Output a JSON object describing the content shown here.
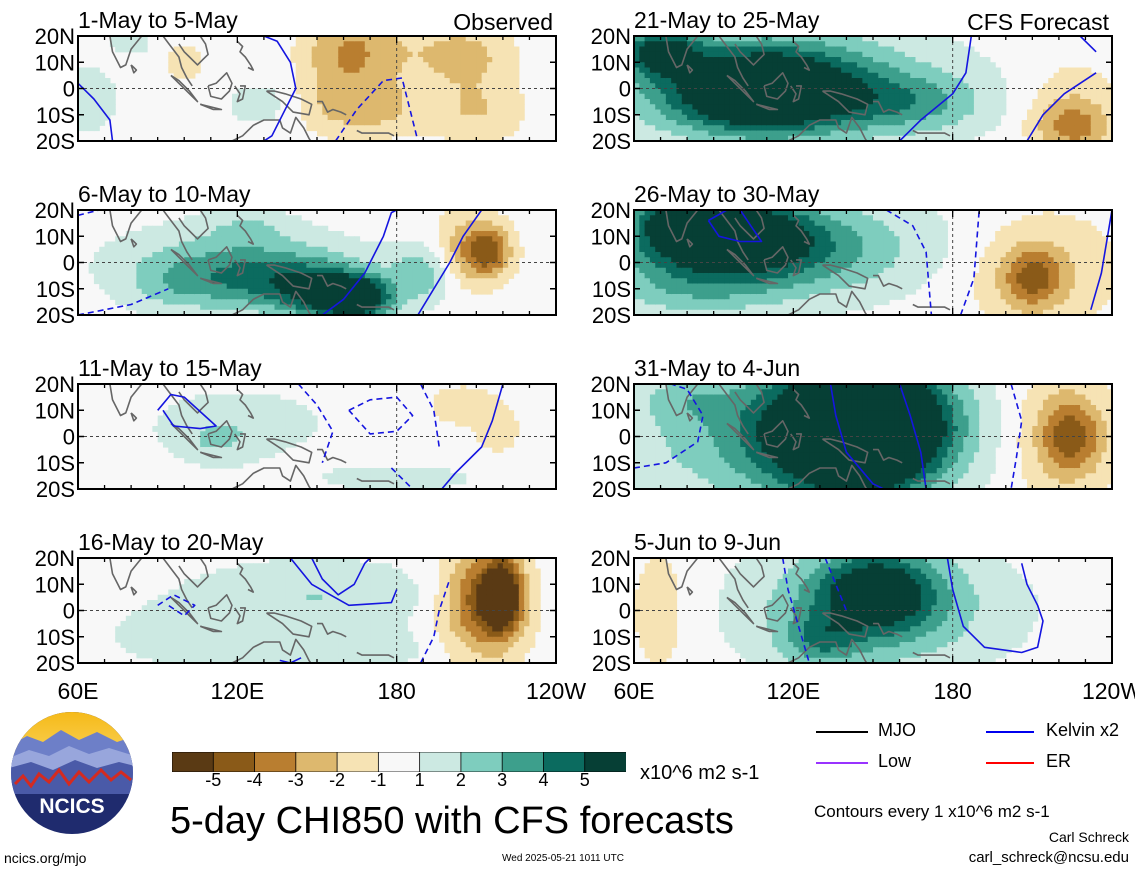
{
  "chart_data": {
    "type": "heatmap",
    "title": "5-day CHI850 with CFS forecasts",
    "x_ticks": [
      "60E",
      "120E",
      "180",
      "120W"
    ],
    "y_ticks": [
      "20N",
      "10N",
      "0",
      "10S",
      "20S"
    ],
    "panels": [
      {
        "label": "1-May to 5-May",
        "tag": "Observed",
        "blobs": [
          [
            -1.5,
            155,
            12,
            9,
            16
          ],
          [
            -2,
            170,
            14,
            11,
            14
          ],
          [
            -2,
            204,
            13,
            13,
            8
          ],
          [
            -1.5,
            170,
            -8,
            15,
            7
          ],
          [
            -1.5,
            210,
            -8,
            12,
            9
          ],
          [
            1.5,
            64,
            -4,
            7,
            8
          ],
          [
            1,
            128,
            -6,
            9,
            6
          ],
          [
            -1,
            100,
            10,
            6,
            5
          ],
          [
            1,
            80,
            18,
            6,
            4
          ]
        ],
        "contours": [
          {
            "type": "kelvin",
            "style": "solid",
            "lon": [
              130,
              135,
              140,
              142,
              137,
              133,
              130
            ],
            "lat": [
              20,
              18,
              10,
              0,
              -10,
              -18,
              -20
            ]
          },
          {
            "type": "kelvin",
            "style": "solid",
            "lon": [
              60,
              66,
              72,
              73
            ],
            "lat": [
              2,
              -4,
              -12,
              -20
            ]
          },
          {
            "type": "kelvin",
            "style": "dashed",
            "lon": [
              157,
              165,
              175,
              182,
              188
            ],
            "lat": [
              -20,
              -8,
              3,
              4,
              -20
            ]
          }
        ]
      },
      {
        "label": "6-May to 10-May",
        "blobs": [
          [
            2,
            116,
            0,
            30,
            10
          ],
          [
            3,
            138,
            -8,
            24,
            8
          ],
          [
            4,
            157,
            -13,
            12,
            6
          ],
          [
            4,
            166,
            -14,
            8,
            5
          ],
          [
            2,
            190,
            -4,
            8,
            8
          ],
          [
            1,
            95,
            -10,
            12,
            7
          ],
          [
            -2,
            205,
            5,
            8,
            10
          ],
          [
            -3.5,
            215,
            4,
            6,
            7
          ],
          [
            1,
            124,
            14,
            11,
            5
          ]
        ],
        "contours": [
          {
            "type": "kelvin",
            "style": "solid",
            "lon": [
              152,
              160,
              168,
              175,
              178,
              180
            ],
            "lat": [
              -20,
              -14,
              -4,
              10,
              19,
              20
            ]
          },
          {
            "type": "kelvin",
            "style": "solid",
            "lon": [
              188,
              194,
              200,
              205,
              212
            ],
            "lat": [
              -20,
              -10,
              0,
              10,
              20
            ]
          },
          {
            "type": "kelvin",
            "style": "dashed",
            "lon": [
              60,
              80,
              94
            ],
            "lat": [
              -20,
              -16,
              -10
            ]
          },
          {
            "type": "kelvin",
            "style": "dashed",
            "lon": [
              60,
              68
            ],
            "lat": [
              18,
              20
            ]
          }
        ]
      },
      {
        "label": "11-May to 15-May",
        "blobs": [
          [
            1,
            120,
            5,
            25,
            10
          ],
          [
            1,
            112,
            -2,
            10,
            6
          ],
          [
            1,
            180,
            -16,
            22,
            4
          ],
          [
            -1,
            205,
            12,
            10,
            6
          ],
          [
            -1,
            218,
            2,
            6,
            6
          ]
        ],
        "contours": [
          {
            "type": "kelvin",
            "style": "solid",
            "lon": [
              90,
              95,
              100,
              112,
              106,
              96,
              92
            ],
            "lat": [
              10,
              16,
              15,
              4,
              3,
              4,
              10
            ]
          },
          {
            "type": "kelvin",
            "style": "solid",
            "lon": [
              197,
              202,
              212,
              216,
              220
            ],
            "lat": [
              -20,
              -14,
              -4,
              6,
              20
            ]
          },
          {
            "type": "kelvin",
            "style": "dashed",
            "lon": [
              143,
              150,
              156,
              152
            ],
            "lat": [
              20,
              12,
              2,
              -10
            ]
          },
          {
            "type": "kelvin",
            "style": "dashed",
            "lon": [
              162,
              170,
              180,
              186,
              180,
              170,
              162
            ],
            "lat": [
              10,
              14,
              15,
              8,
              2,
              1,
              10
            ]
          },
          {
            "type": "kelvin",
            "style": "dashed",
            "lon": [
              178,
              183,
              186
            ],
            "lat": [
              -12,
              -17,
              -20
            ]
          },
          {
            "type": "kelvin",
            "style": "dashed",
            "lon": [
              189,
              194,
              196
            ],
            "lat": [
              20,
              10,
              -4
            ]
          }
        ]
      },
      {
        "label": "16-May to 20-May",
        "blobs": [
          [
            1.5,
            150,
            5,
            35,
            10
          ],
          [
            1,
            100,
            -10,
            20,
            8
          ],
          [
            1,
            160,
            -15,
            30,
            5
          ],
          [
            -1.5,
            210,
            0,
            12,
            20
          ],
          [
            -3,
            214,
            4,
            10,
            12
          ],
          [
            -4.5,
            220,
            6,
            5,
            10
          ]
        ],
        "contours": [
          {
            "type": "kelvin",
            "style": "solid",
            "lon": [
              140,
              148,
              162,
              178,
              180
            ],
            "lat": [
              20,
              10,
              2,
              3,
              8
            ]
          },
          {
            "type": "kelvin",
            "style": "solid",
            "lon": [
              148,
              152,
              158,
              164,
              168,
              170
            ],
            "lat": [
              20,
              12,
              6,
              10,
              18,
              20
            ]
          },
          {
            "type": "kelvin",
            "style": "dashed",
            "lon": [
              90,
              96,
              104,
              100,
              94
            ],
            "lat": [
              2,
              6,
              2,
              -2,
              2
            ]
          },
          {
            "type": "kelvin",
            "style": "dashed",
            "lon": [
              189,
              194,
              196,
              200
            ],
            "lat": [
              -20,
              -10,
              0,
              12
            ]
          },
          {
            "type": "kelvin",
            "style": "solid",
            "lon": [
              144,
              140,
              136
            ],
            "lat": [
              -18,
              -20,
              -19
            ]
          }
        ]
      },
      {
        "label": "21-May to 25-May",
        "tag": "CFS Forecast",
        "blobs": [
          [
            2,
            115,
            3,
            45,
            16
          ],
          [
            3,
            110,
            0,
            30,
            12
          ],
          [
            4,
            108,
            -2,
            22,
            10
          ],
          [
            4.5,
            70,
            14,
            10,
            6
          ],
          [
            2,
            165,
            -6,
            20,
            8
          ],
          [
            -1.5,
            225,
            -8,
            12,
            12
          ],
          [
            -2,
            225,
            -15,
            10,
            6
          ]
        ],
        "contours": [
          {
            "type": "kelvin",
            "style": "solid",
            "lon": [
              160,
              168,
              180,
              185,
              187
            ],
            "lat": [
              -20,
              -12,
              -2,
              6,
              20
            ]
          },
          {
            "type": "kelvin",
            "style": "solid",
            "lon": [
              208,
              214,
              222,
              234
            ],
            "lat": [
              -20,
              -10,
              -2,
              6
            ]
          },
          {
            "type": "kelvin",
            "style": "solid",
            "lon": [
              228,
              234
            ],
            "lat": [
              20,
              14
            ]
          }
        ]
      },
      {
        "label": "26-May to 30-May",
        "blobs": [
          [
            2,
            110,
            6,
            50,
            14
          ],
          [
            3,
            100,
            5,
            30,
            12
          ],
          [
            4,
            95,
            12,
            18,
            8
          ],
          [
            4.5,
            80,
            16,
            10,
            6
          ],
          [
            1,
            80,
            -12,
            20,
            8
          ],
          [
            -1.5,
            212,
            -2,
            22,
            16
          ],
          [
            -3,
            210,
            -6,
            8,
            8
          ]
        ],
        "contours": [
          {
            "type": "kelvin",
            "style": "solid",
            "lon": [
              88,
              95,
              100,
              104,
              108,
              100,
              92,
              88
            ],
            "lat": [
              16,
              20,
              20,
              14,
              8,
              8,
              10,
              16
            ]
          },
          {
            "type": "kelvin",
            "style": "solid",
            "lon": [
              232,
              236,
              240
            ],
            "lat": [
              -18,
              -4,
              20
            ]
          },
          {
            "type": "kelvin",
            "style": "dashed",
            "lon": [
              155,
              165,
              170,
              172
            ],
            "lat": [
              20,
              14,
              4,
              -20
            ]
          },
          {
            "type": "kelvin",
            "style": "dashed",
            "lon": [
              183,
              188,
              190
            ],
            "lat": [
              -20,
              -6,
              20
            ]
          }
        ]
      },
      {
        "label": "31-May to 4-Jun",
        "blobs": [
          [
            1.5,
            105,
            0,
            45,
            20
          ],
          [
            3,
            135,
            2,
            30,
            18
          ],
          [
            4,
            145,
            0,
            20,
            18
          ],
          [
            5,
            150,
            6,
            20,
            14
          ],
          [
            1,
            80,
            14,
            12,
            6
          ],
          [
            -1.5,
            220,
            0,
            14,
            18
          ],
          [
            -3,
            225,
            0,
            8,
            10
          ]
        ],
        "contours": [
          {
            "type": "kelvin",
            "style": "solid",
            "lon": [
              134,
              136,
              140,
              150,
              154
            ],
            "lat": [
              20,
              8,
              -6,
              -18,
              -20
            ]
          },
          {
            "type": "kelvin",
            "style": "solid",
            "lon": [
              160,
              164,
              168,
              170
            ],
            "lat": [
              20,
              8,
              -6,
              -20
            ]
          },
          {
            "type": "kelvin",
            "style": "dashed",
            "lon": [
              60,
              72,
              84,
              86,
              80,
              74,
              68
            ],
            "lat": [
              -12,
              -10,
              -2,
              8,
              18,
              20,
              20
            ]
          },
          {
            "type": "kelvin",
            "style": "dashed",
            "lon": [
              202,
              206,
              204,
              202
            ],
            "lat": [
              20,
              6,
              -8,
              -20
            ]
          }
        ]
      },
      {
        "label": "5-Jun to 9-Jun",
        "blobs": [
          [
            1.5,
            150,
            0,
            40,
            18
          ],
          [
            2.5,
            150,
            4,
            22,
            14
          ],
          [
            3,
            152,
            8,
            14,
            10
          ],
          [
            2,
            130,
            -12,
            10,
            7
          ],
          [
            -1,
            70,
            0,
            10,
            20
          ]
        ],
        "contours": [
          {
            "type": "kelvin",
            "style": "solid",
            "lon": [
              178,
              180,
              184,
              192,
              206,
              212,
              214,
              212,
              208,
              206
            ],
            "lat": [
              20,
              8,
              -6,
              -14,
              -16,
              -14,
              -4,
              2,
              10,
              18
            ]
          },
          {
            "type": "kelvin",
            "style": "dashed",
            "lon": [
              116,
              118,
              122,
              126
            ],
            "lat": [
              20,
              8,
              -6,
              -20
            ]
          },
          {
            "type": "kelvin",
            "style": "dashed",
            "lon": [
              132,
              136,
              140
            ],
            "lat": [
              20,
              10,
              0
            ]
          }
        ]
      }
    ],
    "colorbar": {
      "ticks": [
        "-5",
        "-4",
        "-3",
        "-2",
        "-1",
        "1",
        "2",
        "3",
        "4",
        "5"
      ],
      "colors": [
        "#5a3a14",
        "#8a5a18",
        "#b97e30",
        "#ddb86e",
        "#f6e3b4",
        "#f8f8f8",
        "#cce9e2",
        "#7ecdbe",
        "#3d9f8c",
        "#0b6b5f",
        "#063f35"
      ],
      "units": "x10^6 m2 s-1"
    },
    "legend": [
      {
        "label": "MJO",
        "color": "#000000"
      },
      {
        "label": "Kelvin x2",
        "color": "#0000ee"
      },
      {
        "label": "Low",
        "color": "#9933ff"
      },
      {
        "label": "ER",
        "color": "#ff0000"
      }
    ],
    "contour_note": "Contours every 1 x10^6 m2 s-1"
  },
  "footer": {
    "logo_text": "NCICS",
    "url": "ncics.org/mjo",
    "timestamp": "Wed 2025-05-21 1011 UTC",
    "author": "Carl Schreck",
    "email": "carl_schreck@ncsu.edu"
  }
}
